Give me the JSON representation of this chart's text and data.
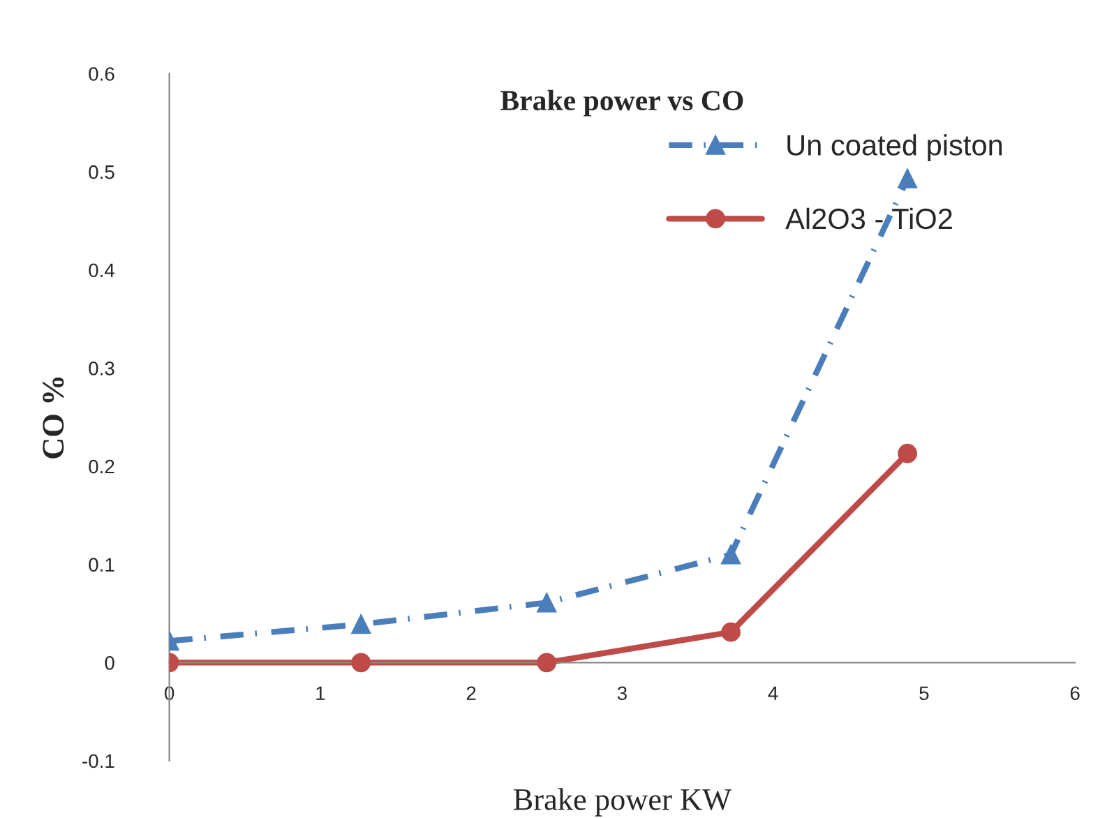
{
  "chart_data": {
    "type": "line",
    "title": "Brake power vs CO",
    "xlabel": "Brake power KW",
    "ylabel": "CO %",
    "xlim": [
      0,
      6
    ],
    "xticks": [
      0,
      1,
      2,
      3,
      4,
      5,
      6
    ],
    "ylim": [
      -0.1,
      0.6
    ],
    "yticks": [
      -0.1,
      0,
      0.1,
      0.2,
      0.3,
      0.4,
      0.5,
      0.6
    ],
    "grid": false,
    "legend": "top right",
    "series": [
      {
        "name": "Un coated piston",
        "color": "#4a7ebb",
        "marker": "triangle",
        "line_style": "dashed",
        "x": [
          0,
          1.27,
          2.5,
          3.72,
          4.89
        ],
        "values": [
          0.022,
          0.039,
          0.061,
          0.11,
          0.493
        ]
      },
      {
        "name": "Al2O3 - TiO2",
        "color": "#be4b48",
        "marker": "circle",
        "line_style": "solid",
        "x": [
          0,
          1.27,
          2.5,
          3.72,
          4.89
        ],
        "values": [
          0,
          0,
          0,
          0.031,
          0.213
        ]
      }
    ]
  }
}
